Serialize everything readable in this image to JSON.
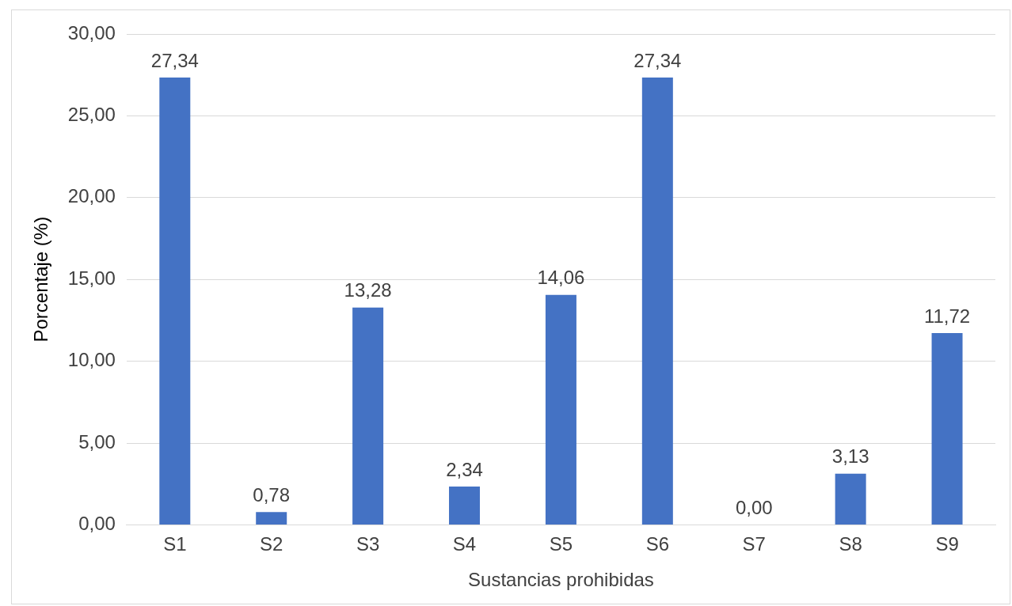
{
  "chart_data": {
    "type": "bar",
    "xlabel": "Sustancias prohibidas",
    "ylabel": "Porcentaje (%)",
    "categories": [
      "S1",
      "S2",
      "S3",
      "S4",
      "S5",
      "S6",
      "S7",
      "S8",
      "S9"
    ],
    "values": [
      27.34,
      0.78,
      13.28,
      2.34,
      14.06,
      27.34,
      0,
      3.13,
      11.72
    ],
    "value_labels": [
      "27,34",
      "0,78",
      "13,28",
      "2,34",
      "14,06",
      "27,34",
      "0,00",
      "3,13",
      "11,72"
    ],
    "color": "#4472c4",
    "ylim": [
      0,
      30
    ],
    "yticks": [
      {
        "value": 0,
        "label": "0,00"
      },
      {
        "value": 5,
        "label": "5,00"
      },
      {
        "value": 10,
        "label": "10,00"
      },
      {
        "value": 15,
        "label": "15,00"
      },
      {
        "value": 20,
        "label": "20,00"
      },
      {
        "value": 25,
        "label": "25,00"
      },
      {
        "value": 30,
        "label": "30,00"
      }
    ],
    "grid": "y",
    "legend": false
  }
}
